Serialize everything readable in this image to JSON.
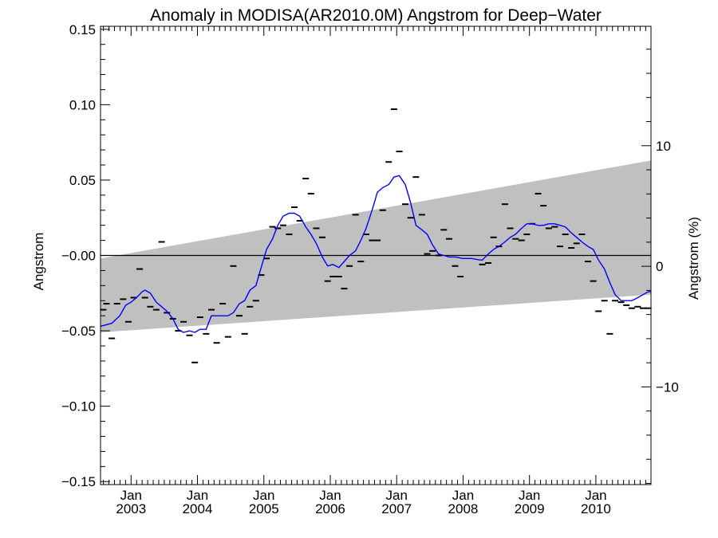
{
  "chart_data": {
    "type": "line",
    "title": "Anomaly in MODISA(AR2010.0M) Angstrom for Deep−Water",
    "ylabel": "Angstrom",
    "y2label": "Angstrom (%)",
    "ylim": [
      -0.152,
      0.152
    ],
    "y2lim": [
      -18.1,
      19.9
    ],
    "xlim": [
      2002.54,
      2010.83
    ],
    "yticks": [
      {
        "v": 0.15,
        "label": "0.15"
      },
      {
        "v": 0.1,
        "label": "0.10"
      },
      {
        "v": 0.05,
        "label": "0.05"
      },
      {
        "v": 0.0,
        "label": "−0.00"
      },
      {
        "v": -0.05,
        "label": "−0.05"
      },
      {
        "v": -0.1,
        "label": "−0.10"
      },
      {
        "v": -0.15,
        "label": "−0.15"
      }
    ],
    "y2ticks": [
      {
        "v": 10,
        "label": "10"
      },
      {
        "v": 0,
        "label": "0"
      },
      {
        "v": -10,
        "label": "−10"
      }
    ],
    "xticks": [
      {
        "v": 2003.0,
        "month": "Jan",
        "year": "2003"
      },
      {
        "v": 2004.0,
        "month": "Jan",
        "year": "2004"
      },
      {
        "v": 2005.0,
        "month": "Jan",
        "year": "2005"
      },
      {
        "v": 2006.0,
        "month": "Jan",
        "year": "2006"
      },
      {
        "v": 2007.0,
        "month": "Jan",
        "year": "2007"
      },
      {
        "v": 2008.0,
        "month": "Jan",
        "year": "2008"
      },
      {
        "v": 2009.0,
        "month": "Jan",
        "year": "2009"
      },
      {
        "v": 2010.0,
        "month": "Jan",
        "year": "2010"
      }
    ],
    "zero_line": 0,
    "band": {
      "color": "#c0c0c0",
      "x": [
        2002.54,
        2010.83
      ],
      "upper": [
        -0.002,
        0.063
      ],
      "lower": [
        -0.051,
        -0.026
      ]
    },
    "smoothed_series": {
      "color": "#0000ff",
      "x": [
        2002.54,
        2002.71,
        2002.83,
        2002.92,
        2003.0,
        2003.08,
        2003.17,
        2003.21,
        2003.29,
        2003.38,
        2003.46,
        2003.54,
        2003.63,
        2003.71,
        2003.79,
        2003.88,
        2003.96,
        2004.04,
        2004.13,
        2004.21,
        2004.29,
        2004.38,
        2004.46,
        2004.54,
        2004.63,
        2004.71,
        2004.79,
        2004.88,
        2004.96,
        2005.04,
        2005.13,
        2005.21,
        2005.29,
        2005.38,
        2005.46,
        2005.54,
        2005.63,
        2005.71,
        2005.79,
        2005.88,
        2005.96,
        2006.04,
        2006.13,
        2006.21,
        2006.29,
        2006.38,
        2006.46,
        2006.54,
        2006.63,
        2006.71,
        2006.79,
        2006.88,
        2006.96,
        2007.04,
        2007.13,
        2007.21,
        2007.29,
        2007.38,
        2007.46,
        2007.54,
        2007.63,
        2007.71,
        2007.79,
        2007.88,
        2008.0,
        2008.13,
        2008.25,
        2008.29,
        2008.38,
        2008.46,
        2008.54,
        2008.63,
        2008.71,
        2008.79,
        2008.88,
        2008.96,
        2009.04,
        2009.13,
        2009.21,
        2009.29,
        2009.38,
        2009.46,
        2009.54,
        2009.63,
        2009.71,
        2009.79,
        2009.88,
        2009.96,
        2010.04,
        2010.13,
        2010.21,
        2010.29,
        2010.38,
        2010.46,
        2010.54,
        2010.63,
        2010.71,
        2010.79,
        2010.83
      ],
      "y": [
        -0.047,
        -0.045,
        -0.04,
        -0.033,
        -0.031,
        -0.028,
        -0.024,
        -0.023,
        -0.025,
        -0.031,
        -0.034,
        -0.037,
        -0.042,
        -0.049,
        -0.051,
        -0.05,
        -0.051,
        -0.049,
        -0.049,
        -0.04,
        -0.04,
        -0.04,
        -0.04,
        -0.038,
        -0.032,
        -0.03,
        -0.023,
        -0.02,
        -0.008,
        0.004,
        0.011,
        0.02,
        0.026,
        0.028,
        0.028,
        0.026,
        0.019,
        0.014,
        0.008,
        -0.001,
        -0.007,
        -0.006,
        -0.008,
        -0.004,
        0.0,
        0.003,
        0.01,
        0.018,
        0.03,
        0.042,
        0.045,
        0.047,
        0.052,
        0.053,
        0.047,
        0.035,
        0.02,
        0.017,
        0.014,
        0.007,
        0.001,
        0.0,
        -0.001,
        -0.001,
        -0.002,
        -0.002,
        -0.003,
        -0.003,
        0.001,
        0.004,
        0.006,
        0.009,
        0.012,
        0.014,
        0.018,
        0.021,
        0.021,
        0.02,
        0.02,
        0.021,
        0.021,
        0.02,
        0.019,
        0.015,
        0.012,
        0.009,
        0.006,
        0.004,
        -0.003,
        -0.009,
        -0.018,
        -0.026,
        -0.03,
        -0.03,
        -0.03,
        -0.028,
        -0.026,
        -0.024,
        -0.024
      ]
    },
    "monthly_points": {
      "color": "#000000",
      "x": [
        2002.58,
        2002.63,
        2002.71,
        2002.79,
        2002.88,
        2002.96,
        2003.04,
        2003.13,
        2003.21,
        2003.29,
        2003.38,
        2003.46,
        2003.54,
        2003.63,
        2003.71,
        2003.79,
        2003.88,
        2003.96,
        2004.04,
        2004.13,
        2004.21,
        2004.29,
        2004.38,
        2004.46,
        2004.54,
        2004.63,
        2004.71,
        2004.79,
        2004.88,
        2004.96,
        2005.04,
        2005.13,
        2005.21,
        2005.29,
        2005.38,
        2005.46,
        2005.54,
        2005.63,
        2005.71,
        2005.79,
        2005.88,
        2005.96,
        2006.04,
        2006.13,
        2006.21,
        2006.29,
        2006.38,
        2006.46,
        2006.54,
        2006.63,
        2006.71,
        2006.79,
        2006.88,
        2006.96,
        2007.04,
        2007.13,
        2007.21,
        2007.29,
        2007.38,
        2007.46,
        2007.54,
        2007.63,
        2007.71,
        2007.79,
        2007.88,
        2007.96,
        2008.29,
        2008.38,
        2008.46,
        2008.54,
        2008.63,
        2008.71,
        2008.79,
        2008.88,
        2008.96,
        2009.04,
        2009.13,
        2009.21,
        2009.29,
        2009.38,
        2009.46,
        2009.54,
        2009.63,
        2009.71,
        2009.79,
        2009.88,
        2009.96,
        2010.04,
        2010.13,
        2010.21,
        2010.29,
        2010.38,
        2010.46,
        2010.54,
        2010.63,
        2010.71,
        2010.79
      ],
      "y": [
        -0.036,
        -0.032,
        -0.055,
        -0.032,
        -0.029,
        -0.044,
        -0.028,
        -0.009,
        -0.028,
        -0.034,
        -0.036,
        0.009,
        -0.038,
        -0.042,
        -0.05,
        -0.044,
        -0.053,
        -0.071,
        -0.041,
        -0.052,
        -0.036,
        -0.058,
        -0.032,
        -0.054,
        -0.007,
        -0.04,
        -0.052,
        -0.034,
        -0.03,
        -0.013,
        -0.002,
        0.019,
        0.018,
        0.02,
        0.014,
        0.032,
        0.023,
        0.051,
        0.041,
        0.018,
        0.012,
        -0.017,
        -0.014,
        -0.014,
        -0.022,
        -0.007,
        0.027,
        -0.004,
        0.014,
        0.01,
        0.01,
        0.03,
        0.062,
        0.097,
        0.069,
        0.034,
        0.025,
        0.052,
        0.027,
        0.001,
        0.003,
        0.0,
        0.017,
        0.011,
        -0.007,
        -0.014,
        -0.006,
        -0.005,
        0.012,
        0.006,
        0.034,
        0.018,
        0.011,
        0.01,
        0.014,
        0.021,
        0.041,
        0.033,
        0.018,
        0.019,
        0.006,
        0.014,
        0.005,
        0.008,
        0.014,
        -0.004,
        -0.017,
        -0.037,
        -0.03,
        -0.052,
        -0.03,
        -0.031,
        -0.033,
        -0.035,
        -0.034,
        -0.035,
        -0.035
      ]
    }
  }
}
